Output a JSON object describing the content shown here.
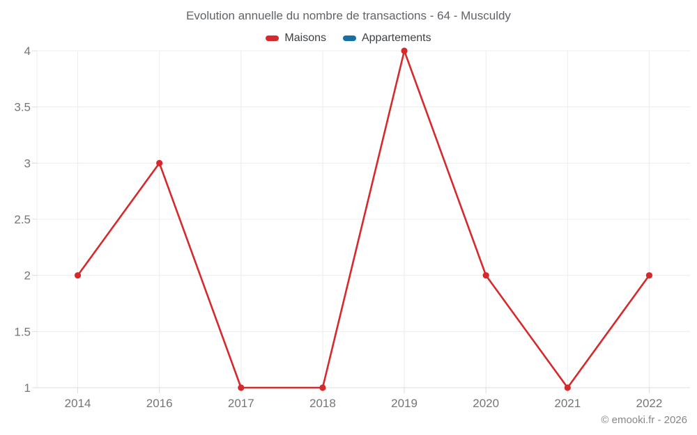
{
  "chart_data": {
    "type": "line",
    "title": "Evolution annuelle du nombre de transactions - 64 - Musculdy",
    "categories": [
      "2014",
      "2016",
      "2017",
      "2018",
      "2019",
      "2020",
      "2021",
      "2022"
    ],
    "series": [
      {
        "name": "Maisons",
        "color": "#d7282c",
        "values": [
          2,
          3,
          1,
          1,
          4,
          2,
          1,
          2
        ]
      },
      {
        "name": "Appartements",
        "color": "#176fa3",
        "values": []
      }
    ],
    "xlabel": "",
    "ylabel": "",
    "ylim": [
      1,
      4
    ],
    "yticks": [
      1,
      1.5,
      2,
      2.5,
      3,
      3.5,
      4
    ],
    "grid": true,
    "legend_position": "top",
    "marker": "circle"
  },
  "footer": {
    "text": "© emooki.fr - 2026"
  },
  "colors": {
    "background": "#ffffff",
    "grid": "#ececec",
    "axis": "#dcdcdc",
    "tick_label": "#757575",
    "title_text": "#5f6368",
    "legend_text": "#3c4043",
    "footer_text": "#878787"
  }
}
